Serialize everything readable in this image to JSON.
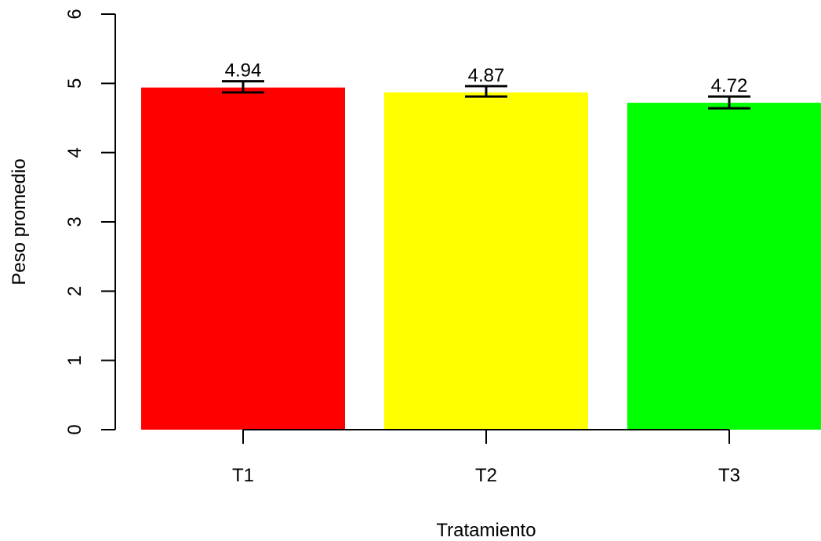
{
  "chart_data": {
    "type": "bar",
    "title": "",
    "xlabel": "Tratamiento",
    "ylabel": "Peso promedio",
    "categories": [
      "T1",
      "T2",
      "T3"
    ],
    "values": [
      4.94,
      4.87,
      4.72
    ],
    "value_labels": [
      "4.94",
      "4.87",
      "4.72"
    ],
    "error_low": [
      4.87,
      4.81,
      4.64
    ],
    "error_high": [
      5.03,
      4.96,
      4.81
    ],
    "colors": [
      "#FF0000",
      "#FFFF00",
      "#00FF00"
    ],
    "ylim": [
      0,
      6
    ],
    "yticks": [
      0,
      1,
      2,
      3,
      4,
      5,
      6
    ],
    "grid": false,
    "legend": "none"
  }
}
